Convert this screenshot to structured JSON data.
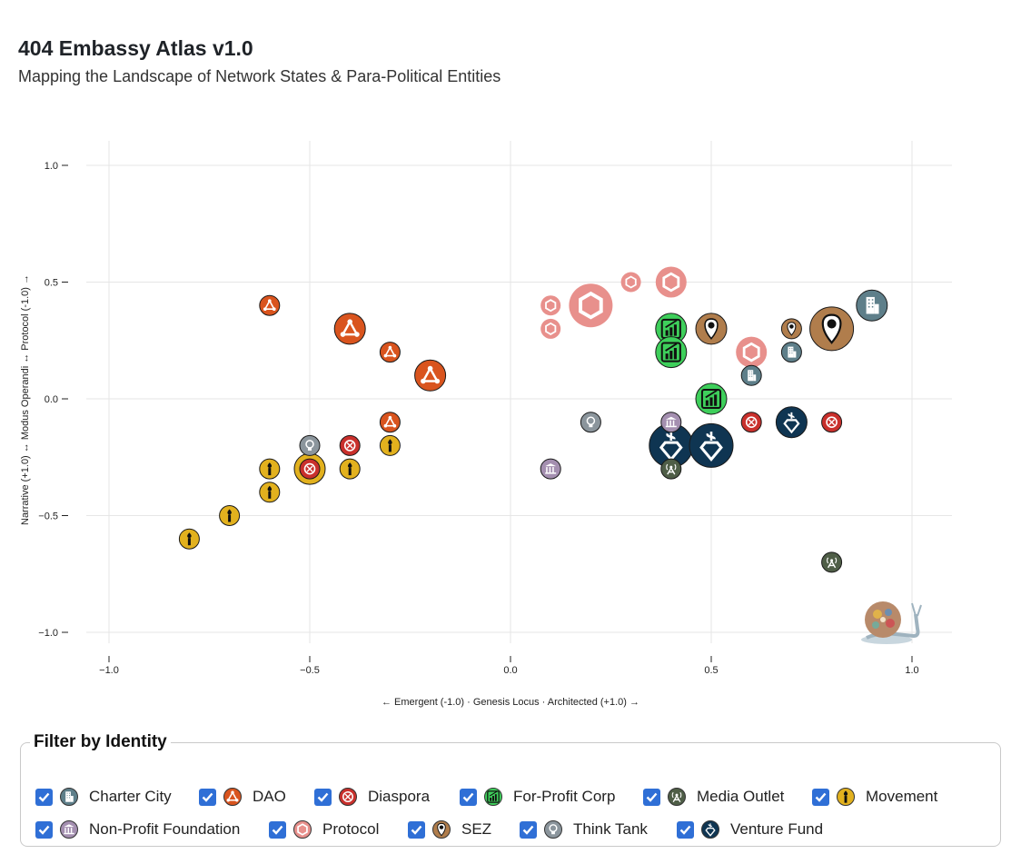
{
  "header": {
    "title": "404 Embassy Atlas v1.0",
    "subtitle": "Mapping the Landscape of Network States & Para-Political Entities"
  },
  "colors": {
    "Charter City": "#5e7f8a",
    "DAO": "#d9541e",
    "Diaspora": "#c9302c",
    "For-Profit Corp": "#3ecf5b",
    "Media Outlet": "#4f5e47",
    "Movement": "#e2b11e",
    "Non-Profit Foundation": "#a48fb0",
    "Protocol": "#e8908c",
    "SEZ": "#b07d4c",
    "Think Tank": "#8b959c",
    "Venture Fund": "#0f3552"
  },
  "icons": {
    "Charter City": "building-icon",
    "DAO": "triangle-network-icon",
    "Diaspora": "globe-icon",
    "For-Profit Corp": "growth-chart-icon",
    "Media Outlet": "broadcast-tower-icon",
    "Movement": "torch-icon",
    "Non-Profit Foundation": "columns-icon",
    "Protocol": "hexagon-icon",
    "SEZ": "map-pin-gear-icon",
    "Think Tank": "lightbulb-icon",
    "Venture Fund": "dollar-diamond-icon"
  },
  "filter": {
    "legend": "Filter by Identity",
    "items": [
      {
        "label": "Charter City",
        "checked": true
      },
      {
        "label": "DAO",
        "checked": true
      },
      {
        "label": "Diaspora",
        "checked": true
      },
      {
        "label": "For-Profit Corp",
        "checked": true
      },
      {
        "label": "Media Outlet",
        "checked": true
      },
      {
        "label": "Movement",
        "checked": true
      },
      {
        "label": "Non-Profit Foundation",
        "checked": true
      },
      {
        "label": "Protocol",
        "checked": true
      },
      {
        "label": "SEZ",
        "checked": true
      },
      {
        "label": "Think Tank",
        "checked": true
      },
      {
        "label": "Venture Fund",
        "checked": true
      }
    ]
  },
  "chart_data": {
    "type": "scatter",
    "title": "",
    "xlabel": "← Emergent (-1.0) · Genesis Locus · Architected (+1.0) →",
    "ylabel": "Narrative (+1.0) ↔ Modus Operandi ↔ Protocol (-1.0) →",
    "xlim": [
      -1.0,
      1.0
    ],
    "ylim": [
      -1.0,
      1.0
    ],
    "x_ticks": [
      "−1.0",
      "−0.5",
      "0.0",
      "0.5",
      "1.0"
    ],
    "y_ticks": [
      "1.0",
      "0.5",
      "0.0",
      "−0.5",
      "−1.0"
    ],
    "grid": true,
    "points": [
      {
        "identity": "DAO",
        "x": -0.6,
        "y": 0.4,
        "size": 1
      },
      {
        "identity": "DAO",
        "x": -0.4,
        "y": 0.3,
        "size": 2
      },
      {
        "identity": "DAO",
        "x": -0.3,
        "y": 0.2,
        "size": 1
      },
      {
        "identity": "DAO",
        "x": -0.2,
        "y": 0.1,
        "size": 2
      },
      {
        "identity": "DAO",
        "x": -0.3,
        "y": -0.1,
        "size": 1
      },
      {
        "identity": "Think Tank",
        "x": -0.5,
        "y": -0.2,
        "size": 1
      },
      {
        "identity": "Diaspora",
        "x": -0.4,
        "y": -0.2,
        "size": 1
      },
      {
        "identity": "Movement",
        "x": -0.3,
        "y": -0.2,
        "size": 1
      },
      {
        "identity": "Movement",
        "x": -0.6,
        "y": -0.3,
        "size": 1
      },
      {
        "identity": "Movement",
        "x": -0.5,
        "y": -0.3,
        "size": 2
      },
      {
        "identity": "Diaspora",
        "x": -0.5,
        "y": -0.3,
        "size": 1
      },
      {
        "identity": "Movement",
        "x": -0.4,
        "y": -0.3,
        "size": 1
      },
      {
        "identity": "Movement",
        "x": -0.6,
        "y": -0.4,
        "size": 1
      },
      {
        "identity": "Movement",
        "x": -0.7,
        "y": -0.5,
        "size": 1
      },
      {
        "identity": "Movement",
        "x": -0.8,
        "y": -0.6,
        "size": 1
      },
      {
        "identity": "Protocol",
        "x": 0.1,
        "y": 0.4,
        "size": 1
      },
      {
        "identity": "Protocol",
        "x": 0.1,
        "y": 0.3,
        "size": 1
      },
      {
        "identity": "Protocol",
        "x": 0.2,
        "y": 0.4,
        "size": 3
      },
      {
        "identity": "Protocol",
        "x": 0.3,
        "y": 0.5,
        "size": 1
      },
      {
        "identity": "Protocol",
        "x": 0.4,
        "y": 0.5,
        "size": 2
      },
      {
        "identity": "Protocol",
        "x": 0.6,
        "y": 0.2,
        "size": 2
      },
      {
        "identity": "For-Profit Corp",
        "x": 0.4,
        "y": 0.3,
        "size": 2
      },
      {
        "identity": "For-Profit Corp",
        "x": 0.4,
        "y": 0.2,
        "size": 2
      },
      {
        "identity": "For-Profit Corp",
        "x": 0.5,
        "y": 0.0,
        "size": 2
      },
      {
        "identity": "SEZ",
        "x": 0.5,
        "y": 0.3,
        "size": 2
      },
      {
        "identity": "SEZ",
        "x": 0.7,
        "y": 0.3,
        "size": 1
      },
      {
        "identity": "SEZ",
        "x": 0.8,
        "y": 0.3,
        "size": 3
      },
      {
        "identity": "Charter City",
        "x": 0.9,
        "y": 0.4,
        "size": 2
      },
      {
        "identity": "Charter City",
        "x": 0.6,
        "y": 0.1,
        "size": 1
      },
      {
        "identity": "Charter City",
        "x": 0.7,
        "y": 0.2,
        "size": 1
      },
      {
        "identity": "Think Tank",
        "x": 0.2,
        "y": -0.1,
        "size": 1
      },
      {
        "identity": "Non-Profit Foundation",
        "x": 0.1,
        "y": -0.3,
        "size": 1
      },
      {
        "identity": "Non-Profit Foundation",
        "x": 0.4,
        "y": -0.1,
        "size": 1
      },
      {
        "identity": "Media Outlet",
        "x": 0.4,
        "y": -0.3,
        "size": 1
      },
      {
        "identity": "Venture Fund",
        "x": 0.4,
        "y": -0.2,
        "size": 3
      },
      {
        "identity": "Venture Fund",
        "x": 0.5,
        "y": -0.2,
        "size": 3
      },
      {
        "identity": "Venture Fund",
        "x": 0.7,
        "y": -0.1,
        "size": 2
      },
      {
        "identity": "Diaspora",
        "x": 0.6,
        "y": -0.1,
        "size": 1
      },
      {
        "identity": "Diaspora",
        "x": 0.8,
        "y": -0.1,
        "size": 1
      },
      {
        "identity": "Media Outlet",
        "x": 0.8,
        "y": -0.7,
        "size": 1
      }
    ]
  }
}
